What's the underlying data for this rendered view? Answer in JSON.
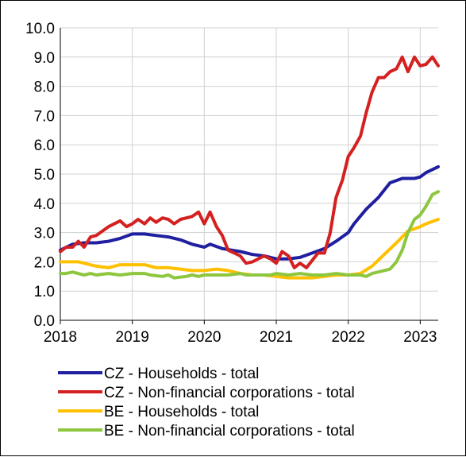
{
  "chart_data": {
    "type": "line",
    "title": "",
    "xlabel": "",
    "ylabel": "",
    "xlim": [
      2018.0,
      2023.25
    ],
    "ylim": [
      0,
      10
    ],
    "y_ticks": [
      "0.0",
      "1.0",
      "2.0",
      "3.0",
      "4.0",
      "5.0",
      "6.0",
      "7.0",
      "8.0",
      "9.0",
      "10.0"
    ],
    "x_ticks": [
      "2018",
      "2019",
      "2020",
      "2021",
      "2022",
      "2023"
    ],
    "grid": true,
    "legend_position": "bottom",
    "series": [
      {
        "name": "CZ - Households - total",
        "color": "#1f1fa0",
        "points": [
          [
            2018.0,
            2.4
          ],
          [
            2018.17,
            2.6
          ],
          [
            2018.33,
            2.65
          ],
          [
            2018.5,
            2.65
          ],
          [
            2018.67,
            2.7
          ],
          [
            2018.83,
            2.8
          ],
          [
            2019.0,
            2.95
          ],
          [
            2019.17,
            2.95
          ],
          [
            2019.33,
            2.9
          ],
          [
            2019.5,
            2.85
          ],
          [
            2019.67,
            2.75
          ],
          [
            2019.83,
            2.6
          ],
          [
            2020.0,
            2.5
          ],
          [
            2020.08,
            2.6
          ],
          [
            2020.25,
            2.45
          ],
          [
            2020.5,
            2.35
          ],
          [
            2020.67,
            2.25
          ],
          [
            2020.83,
            2.2
          ],
          [
            2021.0,
            2.1
          ],
          [
            2021.17,
            2.1
          ],
          [
            2021.33,
            2.15
          ],
          [
            2021.5,
            2.3
          ],
          [
            2021.67,
            2.45
          ],
          [
            2021.83,
            2.7
          ],
          [
            2022.0,
            3.0
          ],
          [
            2022.08,
            3.3
          ],
          [
            2022.25,
            3.8
          ],
          [
            2022.42,
            4.2
          ],
          [
            2022.58,
            4.7
          ],
          [
            2022.75,
            4.85
          ],
          [
            2022.92,
            4.85
          ],
          [
            2023.0,
            4.9
          ],
          [
            2023.08,
            5.05
          ],
          [
            2023.25,
            5.25
          ]
        ]
      },
      {
        "name": "CZ - Non-financial corporations - total",
        "color": "#d42020",
        "points": [
          [
            2018.0,
            2.35
          ],
          [
            2018.08,
            2.5
          ],
          [
            2018.17,
            2.5
          ],
          [
            2018.25,
            2.7
          ],
          [
            2018.33,
            2.5
          ],
          [
            2018.42,
            2.85
          ],
          [
            2018.5,
            2.9
          ],
          [
            2018.67,
            3.2
          ],
          [
            2018.83,
            3.4
          ],
          [
            2018.92,
            3.2
          ],
          [
            2019.0,
            3.3
          ],
          [
            2019.08,
            3.45
          ],
          [
            2019.17,
            3.3
          ],
          [
            2019.25,
            3.5
          ],
          [
            2019.33,
            3.35
          ],
          [
            2019.42,
            3.5
          ],
          [
            2019.5,
            3.45
          ],
          [
            2019.58,
            3.3
          ],
          [
            2019.67,
            3.45
          ],
          [
            2019.83,
            3.55
          ],
          [
            2019.92,
            3.7
          ],
          [
            2020.0,
            3.3
          ],
          [
            2020.08,
            3.7
          ],
          [
            2020.17,
            3.2
          ],
          [
            2020.25,
            2.9
          ],
          [
            2020.33,
            2.4
          ],
          [
            2020.5,
            2.2
          ],
          [
            2020.58,
            1.95
          ],
          [
            2020.67,
            2.0
          ],
          [
            2020.83,
            2.2
          ],
          [
            2020.92,
            2.1
          ],
          [
            2021.0,
            1.95
          ],
          [
            2021.08,
            2.35
          ],
          [
            2021.17,
            2.2
          ],
          [
            2021.25,
            1.8
          ],
          [
            2021.33,
            1.95
          ],
          [
            2021.42,
            1.8
          ],
          [
            2021.5,
            2.05
          ],
          [
            2021.58,
            2.3
          ],
          [
            2021.67,
            2.3
          ],
          [
            2021.75,
            3.0
          ],
          [
            2021.83,
            4.2
          ],
          [
            2021.92,
            4.8
          ],
          [
            2022.0,
            5.6
          ],
          [
            2022.08,
            5.9
          ],
          [
            2022.17,
            6.3
          ],
          [
            2022.25,
            7.1
          ],
          [
            2022.33,
            7.8
          ],
          [
            2022.42,
            8.3
          ],
          [
            2022.5,
            8.3
          ],
          [
            2022.58,
            8.5
          ],
          [
            2022.67,
            8.6
          ],
          [
            2022.75,
            9.0
          ],
          [
            2022.83,
            8.5
          ],
          [
            2022.92,
            9.0
          ],
          [
            2023.0,
            8.7
          ],
          [
            2023.08,
            8.75
          ],
          [
            2023.17,
            9.0
          ],
          [
            2023.25,
            8.7
          ]
        ]
      },
      {
        "name": "BE - Households - total",
        "color": "#ffc000",
        "points": [
          [
            2018.0,
            2.0
          ],
          [
            2018.25,
            2.0
          ],
          [
            2018.5,
            1.85
          ],
          [
            2018.67,
            1.8
          ],
          [
            2018.83,
            1.9
          ],
          [
            2019.0,
            1.9
          ],
          [
            2019.17,
            1.9
          ],
          [
            2019.33,
            1.8
          ],
          [
            2019.5,
            1.8
          ],
          [
            2019.67,
            1.75
          ],
          [
            2019.83,
            1.7
          ],
          [
            2020.0,
            1.7
          ],
          [
            2020.17,
            1.75
          ],
          [
            2020.33,
            1.7
          ],
          [
            2020.5,
            1.6
          ],
          [
            2020.67,
            1.55
          ],
          [
            2020.83,
            1.55
          ],
          [
            2021.0,
            1.5
          ],
          [
            2021.17,
            1.45
          ],
          [
            2021.33,
            1.45
          ],
          [
            2021.5,
            1.45
          ],
          [
            2021.67,
            1.5
          ],
          [
            2021.83,
            1.55
          ],
          [
            2022.0,
            1.55
          ],
          [
            2022.17,
            1.6
          ],
          [
            2022.33,
            1.85
          ],
          [
            2022.5,
            2.25
          ],
          [
            2022.67,
            2.65
          ],
          [
            2022.83,
            3.05
          ],
          [
            2023.0,
            3.2
          ],
          [
            2023.08,
            3.3
          ],
          [
            2023.25,
            3.45
          ]
        ]
      },
      {
        "name": "BE - Non-financial corporations - total",
        "color": "#8dc63f",
        "points": [
          [
            2018.0,
            1.6
          ],
          [
            2018.08,
            1.6
          ],
          [
            2018.17,
            1.65
          ],
          [
            2018.33,
            1.55
          ],
          [
            2018.42,
            1.6
          ],
          [
            2018.5,
            1.55
          ],
          [
            2018.67,
            1.6
          ],
          [
            2018.83,
            1.55
          ],
          [
            2019.0,
            1.6
          ],
          [
            2019.17,
            1.6
          ],
          [
            2019.25,
            1.55
          ],
          [
            2019.42,
            1.5
          ],
          [
            2019.5,
            1.55
          ],
          [
            2019.58,
            1.45
          ],
          [
            2019.75,
            1.5
          ],
          [
            2019.83,
            1.55
          ],
          [
            2019.92,
            1.5
          ],
          [
            2020.0,
            1.55
          ],
          [
            2020.17,
            1.55
          ],
          [
            2020.33,
            1.55
          ],
          [
            2020.5,
            1.6
          ],
          [
            2020.58,
            1.55
          ],
          [
            2020.75,
            1.55
          ],
          [
            2020.92,
            1.55
          ],
          [
            2021.0,
            1.6
          ],
          [
            2021.17,
            1.55
          ],
          [
            2021.33,
            1.6
          ],
          [
            2021.5,
            1.55
          ],
          [
            2021.67,
            1.55
          ],
          [
            2021.83,
            1.6
          ],
          [
            2022.0,
            1.55
          ],
          [
            2022.17,
            1.55
          ],
          [
            2022.25,
            1.5
          ],
          [
            2022.33,
            1.6
          ],
          [
            2022.5,
            1.7
          ],
          [
            2022.58,
            1.75
          ],
          [
            2022.67,
            2.0
          ],
          [
            2022.75,
            2.4
          ],
          [
            2022.83,
            3.0
          ],
          [
            2022.92,
            3.45
          ],
          [
            2023.0,
            3.6
          ],
          [
            2023.08,
            3.9
          ],
          [
            2023.17,
            4.3
          ],
          [
            2023.25,
            4.4
          ]
        ]
      }
    ]
  }
}
